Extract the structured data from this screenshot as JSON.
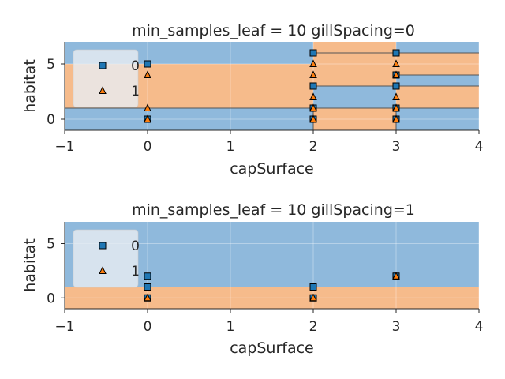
{
  "colors": {
    "class0": "#8fb9dc",
    "class1": "#f6bb8b",
    "marker0": "#1f77b4",
    "marker1": "#ff7f0e",
    "boundary": "#555555",
    "legend_bg": "#e8eef3",
    "text": "#262626"
  },
  "chart_data": [
    {
      "type": "scatter",
      "title": "min_samples_leaf = 10 gillSpacing=0",
      "xlabel": "capSurface",
      "ylabel": "habitat",
      "xlim": [
        -1,
        4
      ],
      "ylim": [
        -1,
        7
      ],
      "xticks": [
        -1,
        0,
        1,
        2,
        3,
        4
      ],
      "xtick_labels": [
        "−1",
        "0",
        "1",
        "2",
        "3",
        "4"
      ],
      "yticks": [
        0,
        5
      ],
      "ytick_labels": [
        "0",
        "5"
      ],
      "grid": true,
      "legend": {
        "position": "upper-left",
        "labels": [
          "0",
          "1"
        ]
      },
      "decision_regions": [
        {
          "x": [
            -1,
            4
          ],
          "y": [
            -1,
            1
          ],
          "class": 0
        },
        {
          "x": [
            -1,
            2
          ],
          "y": [
            1,
            5
          ],
          "class": 1
        },
        {
          "x": [
            -1,
            2
          ],
          "y": [
            5,
            7
          ],
          "class": 0
        },
        {
          "x": [
            2,
            3
          ],
          "y": [
            -1,
            1
          ],
          "class": 1
        },
        {
          "x": [
            2,
            3
          ],
          "y": [
            1,
            3
          ],
          "class": 0
        },
        {
          "x": [
            2,
            3
          ],
          "y": [
            3,
            7
          ],
          "class": 1
        },
        {
          "x": [
            3,
            4
          ],
          "y": [
            1,
            3
          ],
          "class": 1
        },
        {
          "x": [
            3,
            4
          ],
          "y": [
            3,
            4
          ],
          "class": 0
        },
        {
          "x": [
            3,
            4
          ],
          "y": [
            4,
            6
          ],
          "class": 1
        },
        {
          "x": [
            3,
            4
          ],
          "y": [
            6,
            7
          ],
          "class": 0
        }
      ],
      "boundaries": {
        "horizontal": [
          {
            "y": 1,
            "x": [
              -1,
              4
            ]
          },
          {
            "y": 3,
            "x": [
              2,
              4
            ]
          },
          {
            "y": 4,
            "x": [
              3,
              4
            ]
          },
          {
            "y": 6,
            "x": [
              2,
              4
            ]
          }
        ],
        "vertical": [
          {
            "x": 2,
            "y": [
              -1,
              1
            ]
          },
          {
            "x": 3,
            "y": [
              -1,
              1
            ]
          }
        ]
      },
      "series": [
        {
          "name": "0",
          "marker": "square",
          "points": [
            [
              0,
              5
            ],
            [
              0,
              0
            ],
            [
              2,
              6
            ],
            [
              2,
              3
            ],
            [
              2,
              1
            ],
            [
              2,
              0
            ],
            [
              3,
              6
            ],
            [
              3,
              4
            ],
            [
              3,
              3
            ],
            [
              3,
              1
            ],
            [
              3,
              0
            ]
          ]
        },
        {
          "name": "1",
          "marker": "triangle",
          "points": [
            [
              0,
              4
            ],
            [
              0,
              1
            ],
            [
              0,
              0
            ],
            [
              2,
              5
            ],
            [
              2,
              4
            ],
            [
              2,
              2
            ],
            [
              2,
              1
            ],
            [
              2,
              0
            ],
            [
              3,
              5
            ],
            [
              3,
              4
            ],
            [
              3,
              2
            ],
            [
              3,
              1
            ],
            [
              3,
              0
            ]
          ]
        }
      ]
    },
    {
      "type": "scatter",
      "title": "min_samples_leaf = 10 gillSpacing=1",
      "xlabel": "capSurface",
      "ylabel": "habitat",
      "xlim": [
        -1,
        4
      ],
      "ylim": [
        -1,
        7
      ],
      "xticks": [
        -1,
        0,
        1,
        2,
        3,
        4
      ],
      "xtick_labels": [
        "−1",
        "0",
        "1",
        "2",
        "3",
        "4"
      ],
      "yticks": [
        0,
        5
      ],
      "ytick_labels": [
        "0",
        "5"
      ],
      "grid": true,
      "legend": {
        "position": "upper-left",
        "labels": [
          "0",
          "1"
        ]
      },
      "decision_regions": [
        {
          "x": [
            -1,
            4
          ],
          "y": [
            -1,
            1
          ],
          "class": 1
        },
        {
          "x": [
            -1,
            4
          ],
          "y": [
            1,
            7
          ],
          "class": 0
        }
      ],
      "boundaries": {
        "horizontal": [
          {
            "y": 1,
            "x": [
              -1,
              4
            ]
          }
        ],
        "vertical": []
      },
      "series": [
        {
          "name": "0",
          "marker": "square",
          "points": [
            [
              0,
              2
            ],
            [
              0,
              1
            ],
            [
              0,
              0
            ],
            [
              2,
              1
            ],
            [
              2,
              0
            ],
            [
              3,
              2
            ]
          ]
        },
        {
          "name": "1",
          "marker": "triangle",
          "points": [
            [
              0,
              0
            ],
            [
              2,
              0
            ],
            [
              3,
              2
            ]
          ]
        }
      ]
    }
  ]
}
